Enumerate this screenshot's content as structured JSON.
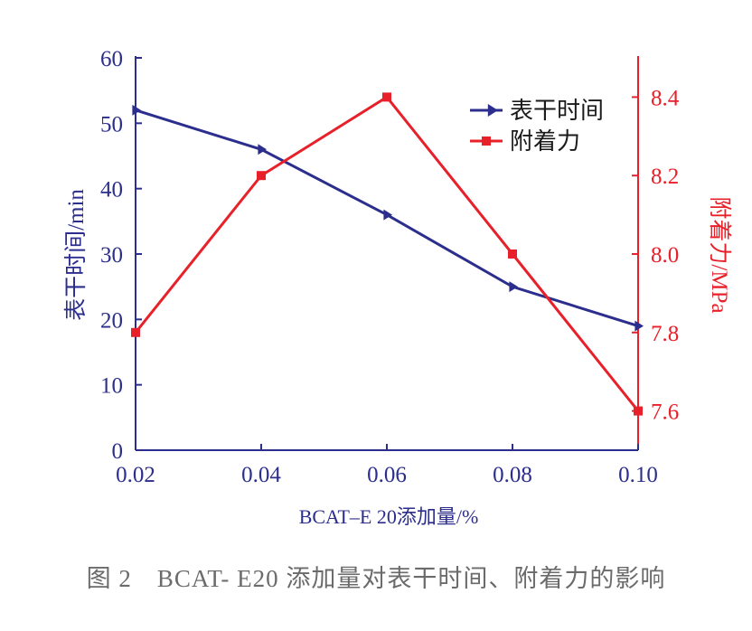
{
  "chart_data": {
    "type": "line",
    "x": [
      0.02,
      0.04,
      0.06,
      0.08,
      0.1
    ],
    "x_tick_labels": [
      "0.02",
      "0.04",
      "0.06",
      "0.08",
      "0.10"
    ],
    "xlabel": "BCAT–E 20添加量/%",
    "xlim": [
      0.02,
      0.1
    ],
    "y_left": {
      "label": "表干时间/min",
      "lim": [
        0,
        60
      ],
      "ticks": [
        "0",
        "10",
        "20",
        "30",
        "40",
        "50",
        "60"
      ],
      "color": "#2b2e8c"
    },
    "y_right": {
      "label": "附着力/MPa",
      "lim": [
        7.5,
        8.5
      ],
      "ticks": [
        "7.6",
        "7.8",
        "8.0",
        "8.2",
        "8.4"
      ],
      "color": "#e8202a"
    },
    "series": [
      {
        "name": "表干时间",
        "axis": "left",
        "marker": "triangle-right",
        "color": "#2b2e8c",
        "values": [
          52,
          46,
          36,
          25,
          19
        ]
      },
      {
        "name": "附着力",
        "axis": "right",
        "marker": "square",
        "color": "#e8202a",
        "values": [
          7.8,
          8.2,
          8.4,
          8.0,
          7.6
        ]
      }
    ],
    "legend": {
      "placement": "top-right"
    },
    "grid": false
  },
  "caption": "图 2　BCAT- E20 添加量对表干时间、附着力的影响"
}
